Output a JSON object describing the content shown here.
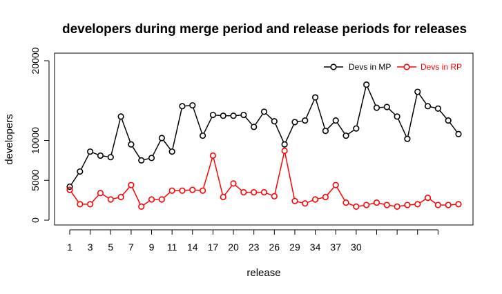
{
  "chart_data": {
    "type": "line",
    "title": "developers during merge period and release periods for releases",
    "xlabel": "release",
    "ylabel": "developers",
    "ylim": [
      0,
      20000
    ],
    "xlim": [
      1,
      39
    ],
    "yticks": [
      0,
      5000,
      10000,
      20000
    ],
    "xtick_positions": [
      1,
      3,
      5,
      7,
      9,
      11,
      13,
      15,
      17,
      19,
      21,
      23,
      25,
      27,
      29,
      31,
      33,
      35,
      37
    ],
    "xtick_labels": [
      "1",
      "3",
      "5",
      "7",
      "9",
      "11",
      "14",
      "17",
      "20",
      "23",
      "26",
      "29",
      "34",
      "37",
      "30",
      "",
      "",
      "",
      ""
    ],
    "x": [
      1,
      2,
      3,
      4,
      5,
      6,
      7,
      8,
      9,
      10,
      11,
      12,
      13,
      14,
      15,
      16,
      17,
      18,
      19,
      20,
      21,
      22,
      23,
      24,
      25,
      26,
      27,
      28,
      29,
      30,
      31,
      32,
      33,
      34,
      35,
      36,
      37,
      38,
      39
    ],
    "grid": false,
    "legend_position": "top-right",
    "series": [
      {
        "name": "Devs in MP",
        "color": "#000000",
        "values": [
          4200,
          6100,
          8600,
          8100,
          7900,
          13000,
          9500,
          7500,
          7800,
          10300,
          8600,
          14300,
          14400,
          10600,
          13200,
          13100,
          13100,
          13200,
          11700,
          13600,
          12400,
          9500,
          12300,
          12500,
          15400,
          11200,
          12500,
          10600,
          11500,
          17000,
          14100,
          14200,
          13000,
          10200,
          16100,
          14300,
          14000,
          12500,
          10800
        ]
      },
      {
        "name": "Devs in RP",
        "color": "#ff0000",
        "values": [
          3800,
          2000,
          2000,
          3400,
          2600,
          2900,
          4400,
          1700,
          2600,
          2600,
          3700,
          3700,
          3800,
          3700,
          8100,
          2900,
          4600,
          3500,
          3500,
          3500,
          3000,
          8700,
          2400,
          2100,
          2600,
          2900,
          4400,
          2200,
          1700,
          1900,
          2200,
          1900,
          1700,
          1900,
          2000,
          2800,
          1900,
          1900,
          2000
        ]
      }
    ]
  }
}
